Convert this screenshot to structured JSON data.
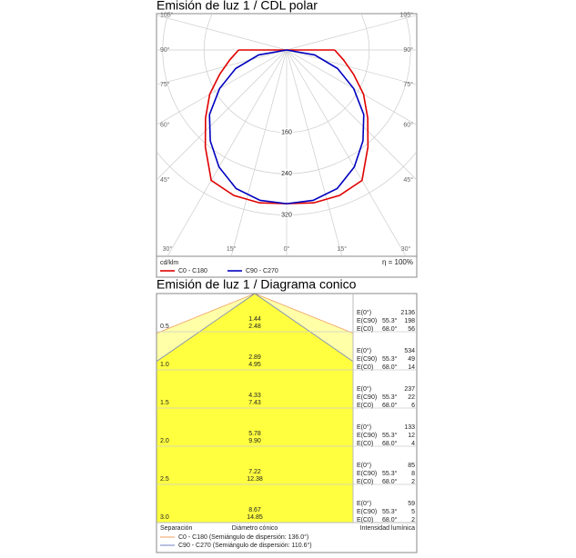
{
  "chart_data": [
    {
      "type": "polar",
      "title": "Emisión de luz 1 / CDL polar",
      "unit_label": "cd/klm",
      "efficiency_label": "η = 100%",
      "rlim": [
        0,
        400
      ],
      "rticks": [
        160,
        240,
        320
      ],
      "angle_ticks": [
        {
          "value": 105,
          "label": "105°"
        },
        {
          "value": 90,
          "label": "90°"
        },
        {
          "value": 75,
          "label": "75°"
        },
        {
          "value": 60,
          "label": "60°"
        },
        {
          "value": 45,
          "label": "45°"
        },
        {
          "value": 30,
          "label": "30°"
        },
        {
          "value": 15,
          "label": "15°"
        },
        {
          "value": 0,
          "label": "0°"
        }
      ],
      "x": [
        0,
        10,
        20,
        30,
        40,
        50,
        60,
        70,
        80,
        90
      ],
      "series": [
        {
          "name": "C0 - C180",
          "color": "#e00000",
          "values": [
            298,
            301,
            300,
            292,
            245,
            205,
            172,
            138,
            112,
            93
          ]
        },
        {
          "name": "C90 - C270",
          "color": "#0000c0",
          "values": [
            298,
            296,
            286,
            262,
            230,
            195,
            150,
            105,
            55,
            0
          ]
        }
      ]
    },
    {
      "type": "cone",
      "title": "Emisión de luz 1 / Diagrama conico",
      "x_label": "Separación",
      "diameter_label": "Diámetro cónico",
      "intensity_label": "Intensidad lumínica",
      "ylim": [
        0,
        3
      ],
      "distances": [
        {
          "value": 0.5,
          "label": "0.5"
        },
        {
          "value": 1,
          "label": "1.0"
        },
        {
          "value": 1.5,
          "label": "1.5"
        },
        {
          "value": 2,
          "label": "2.0"
        },
        {
          "value": 2.5,
          "label": "2.5"
        },
        {
          "value": 3,
          "label": "3.0"
        }
      ],
      "center": {
        "e_label": "E(0°)",
        "illuminance": [
          2136,
          534,
          237,
          133,
          85,
          59
        ]
      },
      "series": [
        {
          "name": "C0 - C180 (Semiángulo de dispersión: 136.0°)",
          "color": "#f0a060",
          "fill": "#ffffa8",
          "e_label": "E(C0)",
          "angle": {
            "value": 68,
            "label": "68.0°"
          },
          "values": [
            2.48,
            4.95,
            7.43,
            9.9,
            12.38,
            14.85
          ],
          "value_labels": [
            "2.48",
            "4.95",
            "7.43",
            "9.90",
            "12.38",
            "14.85"
          ],
          "illuminance": [
            56,
            14,
            6,
            4,
            2,
            2
          ]
        },
        {
          "name": "C90 - C270 (Semiángulo de dispersión: 110.6°)",
          "color": "#7080c0",
          "fill": "#ffff40",
          "e_label": "E(C90)",
          "angle": {
            "value": 55.3,
            "label": "55.3°"
          },
          "values": [
            1.44,
            2.89,
            4.33,
            5.78,
            7.22,
            8.67
          ],
          "value_labels": [
            "1.44",
            "2.89",
            "4.33",
            "5.78",
            "7.22",
            "8.67"
          ],
          "illuminance": [
            198,
            49,
            22,
            12,
            8,
            5
          ]
        }
      ]
    }
  ]
}
